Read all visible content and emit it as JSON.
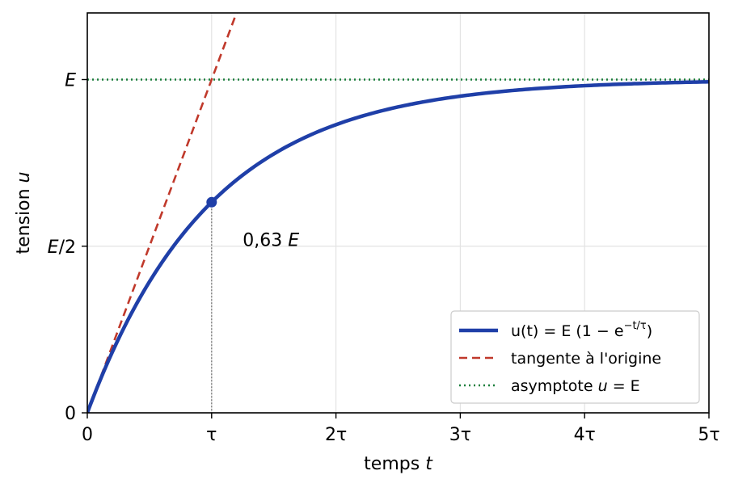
{
  "chart_data": {
    "type": "line",
    "xlabel": {
      "text": "temps ",
      "var": "t"
    },
    "ylabel": {
      "text": "tension ",
      "var": "u"
    },
    "xlim": [
      0,
      5
    ],
    "ylim": [
      0,
      1.2
    ],
    "x_unit": "tau",
    "y_unit": "E",
    "grid": true,
    "legend_position": "lower-right",
    "xticks": [
      {
        "value": 0,
        "label": "0"
      },
      {
        "value": 1,
        "label": "τ"
      },
      {
        "value": 2,
        "label": "2τ"
      },
      {
        "value": 3,
        "label": "3τ"
      },
      {
        "value": 4,
        "label": "4τ"
      },
      {
        "value": 5,
        "label": "5τ"
      }
    ],
    "yticks": [
      {
        "value": 0,
        "label": "0"
      },
      {
        "value": 0.5,
        "label": "E/2"
      },
      {
        "value": 1,
        "label": "E"
      }
    ],
    "series": [
      {
        "name": "u(t) = E (1 − e^(−t/τ))",
        "style": "solid",
        "color": "#1f3fa8",
        "x": [
          0,
          0.1,
          0.2,
          0.3,
          0.4,
          0.5,
          0.6,
          0.7,
          0.8,
          0.9,
          1.0,
          1.25,
          1.5,
          1.75,
          2.0,
          2.25,
          2.5,
          2.75,
          3.0,
          3.5,
          4.0,
          4.5,
          5.0
        ],
        "y": [
          0,
          0.095,
          0.181,
          0.259,
          0.33,
          0.393,
          0.451,
          0.503,
          0.551,
          0.593,
          0.632,
          0.713,
          0.777,
          0.826,
          0.865,
          0.895,
          0.918,
          0.936,
          0.95,
          0.97,
          0.982,
          0.989,
          0.993
        ]
      },
      {
        "name": "tangente à l'origine",
        "style": "dashed",
        "color": "#c0392b",
        "x": [
          0,
          1.2
        ],
        "y": [
          0,
          1.2
        ]
      },
      {
        "name": "asymptote u = E",
        "style": "dotted",
        "color": "#1a7f3c",
        "x": [
          0,
          5
        ],
        "y": [
          1,
          1
        ]
      }
    ],
    "marker": {
      "x": 1,
      "y": 0.632,
      "color": "#1f3fa8"
    },
    "annotation": {
      "text": "0,63 E",
      "x": 1.25,
      "y": 0.52
    },
    "legend": [
      {
        "pre": "u(t) = E (1 − e",
        "sup": "−t/τ",
        "post": ")"
      },
      {
        "pre": "tangente à l'origine",
        "sup": "",
        "post": ""
      },
      {
        "pre": "asymptote ",
        "var": "u",
        "post": " = E"
      }
    ]
  }
}
